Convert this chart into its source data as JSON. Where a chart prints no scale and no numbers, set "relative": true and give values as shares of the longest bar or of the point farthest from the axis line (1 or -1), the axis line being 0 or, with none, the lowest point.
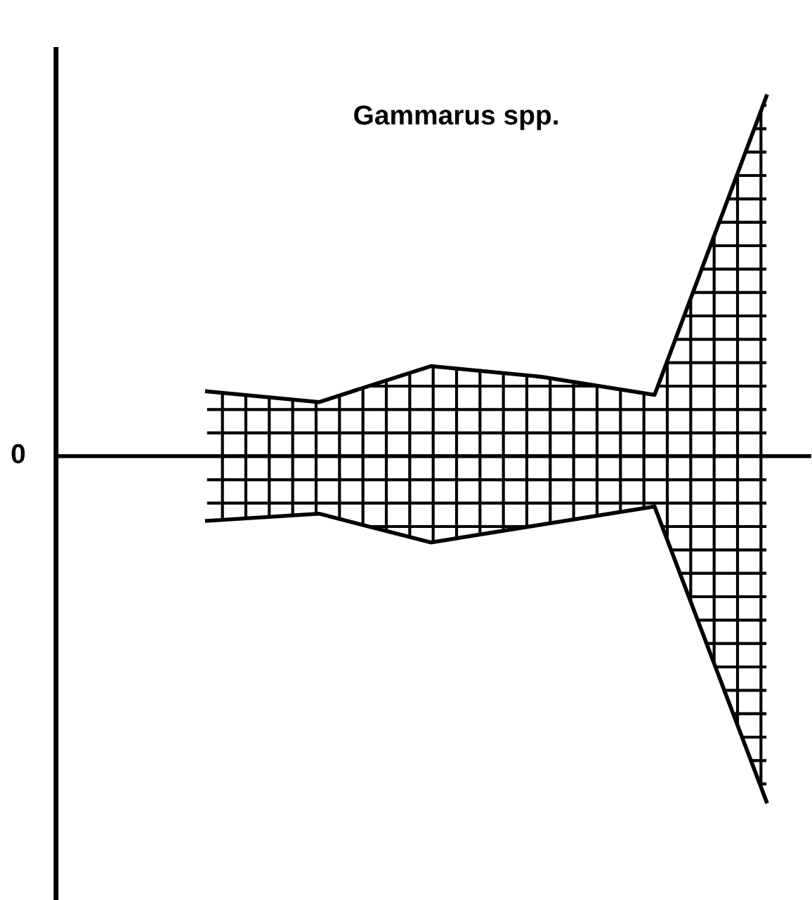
{
  "chart_data": {
    "type": "area",
    "title": "Gammarus spp.",
    "relative": true,
    "categories": [
      null,
      null,
      null,
      null,
      null,
      null
    ],
    "series": [
      {
        "color": "#000000",
        "values": [
          0.18,
          0.15,
          0.25,
          0.22,
          0.17,
          1.0
        ]
      },
      {
        "color": "#000000",
        "values": [
          -0.18,
          -0.16,
          -0.24,
          -0.19,
          -0.14,
          -0.96
        ]
      }
    ],
    "ref_lines": [
      {
        "axis": "y",
        "value": 0,
        "label": "0",
        "color": "#000000"
      }
    ],
    "grid": false,
    "legend": false
  }
}
